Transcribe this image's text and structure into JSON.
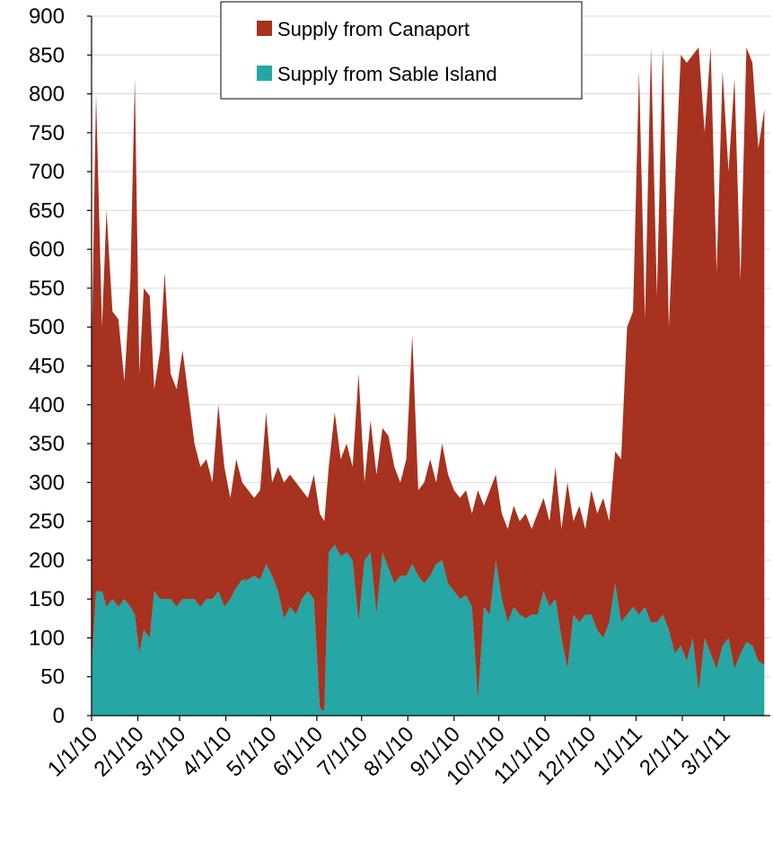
{
  "chart_data": {
    "type": "stacked_area",
    "x": [
      "1/1/10",
      "1/4/10",
      "1/8/10",
      "1/11/10",
      "1/15/10",
      "1/19/10",
      "1/23/10",
      "1/27/10",
      "1/30/10",
      "2/2/10",
      "2/5/10",
      "2/9/10",
      "2/12/10",
      "2/16/10",
      "2/19/10",
      "2/23/10",
      "2/27/10",
      "3/3/10",
      "3/7/10",
      "3/11/10",
      "3/15/10",
      "3/19/10",
      "3/23/10",
      "3/27/10",
      "3/31/10",
      "4/4/10",
      "4/8/10",
      "4/12/10",
      "4/16/10",
      "4/20/10",
      "4/24/10",
      "4/28/10",
      "5/2/10",
      "5/6/10",
      "5/10/10",
      "5/14/10",
      "5/18/10",
      "5/22/10",
      "5/26/10",
      "5/30/10",
      "6/3/10",
      "6/6/10",
      "6/9/10",
      "6/13/10",
      "6/17/10",
      "6/21/10",
      "6/25/10",
      "6/29/10",
      "7/3/10",
      "7/7/10",
      "7/11/10",
      "7/15/10",
      "7/19/10",
      "7/23/10",
      "7/27/10",
      "7/31/10",
      "8/4/10",
      "8/8/10",
      "8/12/10",
      "8/16/10",
      "8/20/10",
      "8/24/10",
      "8/28/10",
      "9/1/10",
      "9/5/10",
      "9/9/10",
      "9/13/10",
      "9/17/10",
      "9/21/10",
      "9/25/10",
      "9/29/10",
      "10/3/10",
      "10/7/10",
      "10/11/10",
      "10/15/10",
      "10/19/10",
      "10/23/10",
      "10/27/10",
      "10/31/10",
      "11/4/10",
      "11/8/10",
      "11/12/10",
      "11/16/10",
      "11/20/10",
      "11/24/10",
      "11/28/10",
      "12/2/10",
      "12/6/10",
      "12/10/10",
      "12/14/10",
      "12/18/10",
      "12/22/10",
      "12/26/10",
      "12/30/10",
      "1/3/11",
      "1/7/11",
      "1/11/11",
      "1/15/11",
      "1/19/11",
      "1/23/11",
      "1/27/11",
      "1/31/11",
      "2/4/11",
      "2/8/11",
      "2/12/11",
      "2/16/11",
      "2/20/11",
      "2/24/11",
      "2/28/11",
      "3/4/11",
      "3/8/11",
      "3/12/11",
      "3/16/11",
      "3/20/11",
      "3/24/11",
      "3/28/11"
    ],
    "series": [
      {
        "name": "Supply from Sable Island",
        "color": "#26a6a4",
        "values": [
          60,
          160,
          160,
          140,
          150,
          140,
          150,
          140,
          130,
          80,
          110,
          100,
          160,
          150,
          150,
          150,
          140,
          150,
          150,
          150,
          140,
          150,
          150,
          160,
          140,
          150,
          165,
          175,
          175,
          180,
          175,
          195,
          180,
          160,
          125,
          140,
          130,
          150,
          160,
          150,
          10,
          5,
          210,
          220,
          205,
          210,
          200,
          120,
          200,
          210,
          130,
          210,
          190,
          170,
          180,
          180,
          195,
          180,
          170,
          180,
          195,
          200,
          170,
          160,
          150,
          155,
          140,
          20,
          140,
          130,
          200,
          150,
          120,
          140,
          130,
          125,
          130,
          130,
          160,
          140,
          150,
          100,
          60,
          130,
          120,
          130,
          130,
          110,
          100,
          120,
          170,
          120,
          130,
          140,
          130,
          140,
          120,
          120,
          130,
          110,
          80,
          90,
          70,
          100,
          30,
          100,
          80,
          60,
          90,
          100,
          60,
          80,
          95,
          90,
          70,
          65
        ]
      },
      {
        "name": "Supply from Canaport",
        "color": "#a6321f",
        "values": [
          400,
          640,
          340,
          510,
          370,
          370,
          280,
          420,
          690,
          360,
          440,
          440,
          260,
          320,
          420,
          290,
          280,
          320,
          260,
          200,
          180,
          180,
          150,
          240,
          180,
          130,
          165,
          125,
          115,
          100,
          115,
          195,
          120,
          160,
          175,
          170,
          170,
          140,
          120,
          160,
          250,
          245,
          110,
          170,
          125,
          140,
          120,
          320,
          100,
          170,
          180,
          160,
          170,
          150,
          120,
          150,
          295,
          110,
          130,
          150,
          105,
          150,
          140,
          130,
          130,
          135,
          120,
          270,
          130,
          160,
          110,
          110,
          120,
          130,
          120,
          135,
          110,
          130,
          120,
          110,
          170,
          140,
          240,
          120,
          150,
          110,
          160,
          150,
          180,
          130,
          170,
          210,
          370,
          380,
          700,
          370,
          740,
          420,
          730,
          390,
          600,
          760,
          770,
          750,
          830,
          650,
          780,
          510,
          740,
          600,
          760,
          480,
          765,
          750,
          660,
          715
        ]
      }
    ],
    "xlim": [
      "1/1/10",
      "4/1/11"
    ],
    "xticks": [
      "1/1/10",
      "2/1/10",
      "3/1/10",
      "4/1/10",
      "5/1/10",
      "6/1/10",
      "7/1/10",
      "8/1/10",
      "9/1/10",
      "10/1/10",
      "11/1/10",
      "12/1/10",
      "1/1/11",
      "2/1/11",
      "3/1/11"
    ],
    "ylim": [
      0,
      900
    ],
    "yticks": [
      0,
      50,
      100,
      150,
      200,
      250,
      300,
      350,
      400,
      450,
      500,
      550,
      600,
      650,
      700,
      750,
      800,
      850,
      900
    ],
    "grid": true,
    "legend": "top"
  }
}
